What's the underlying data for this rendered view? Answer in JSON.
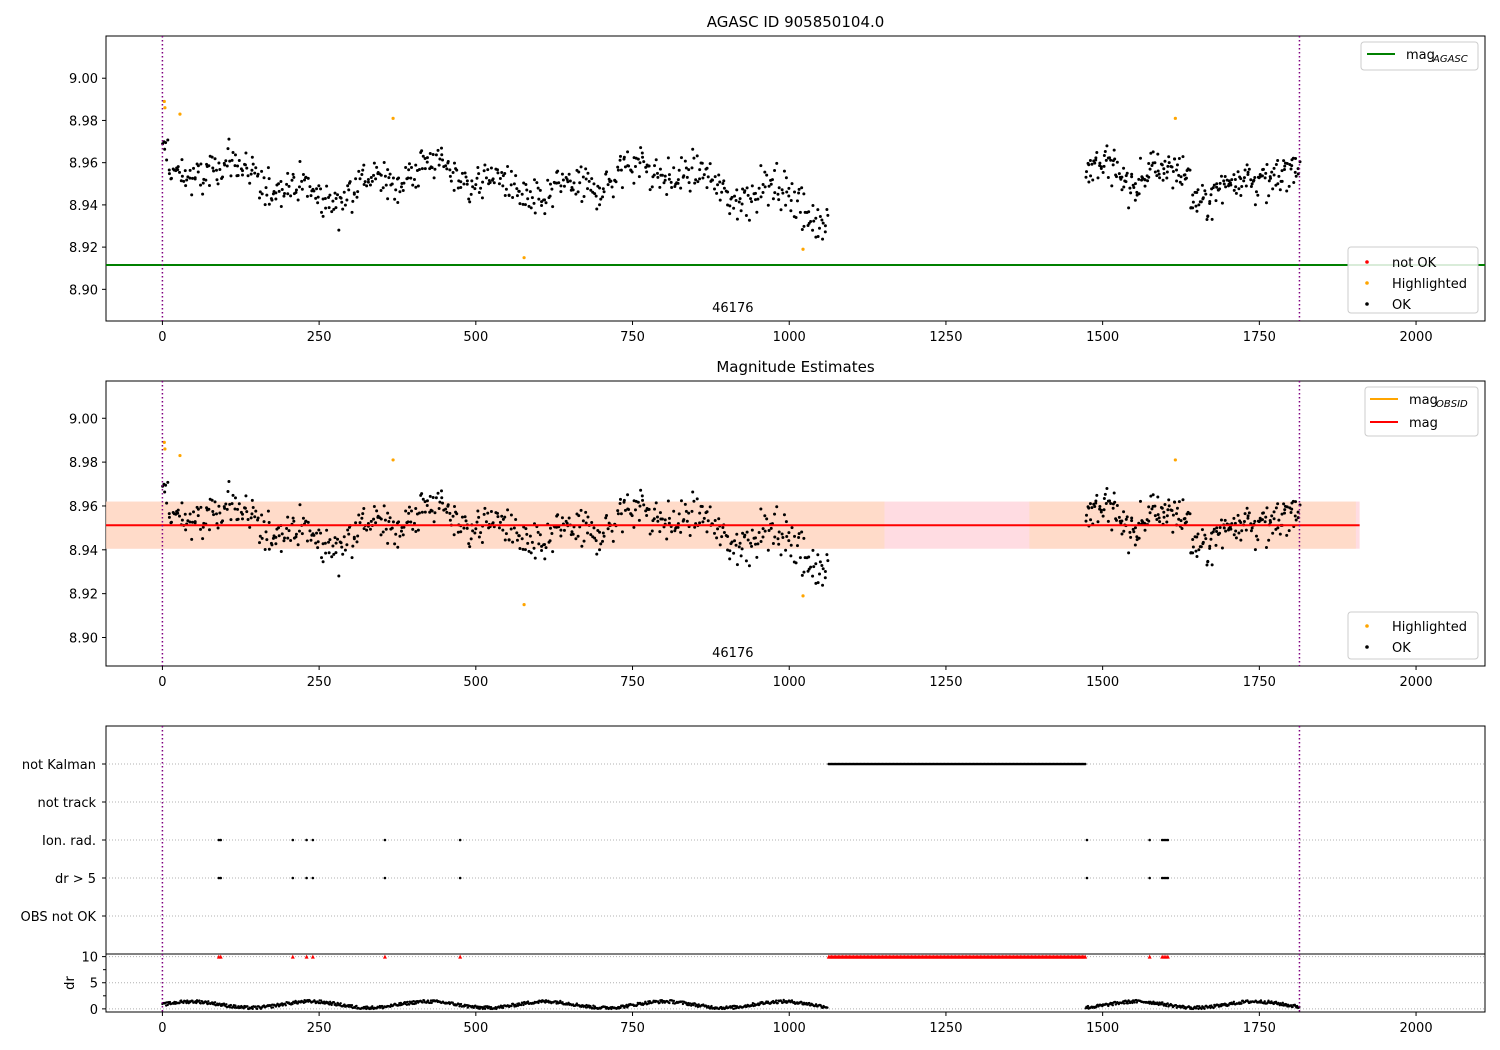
{
  "figure": {
    "background": "#ffffff"
  },
  "chart_data": [
    {
      "type": "scatter",
      "title": "AGASC ID 905850104.0",
      "xlim": [
        -90,
        2110
      ],
      "ylim": [
        8.885,
        9.02
      ],
      "xticks": [
        "0",
        "250",
        "500",
        "750",
        "1000",
        "1250",
        "1500",
        "1750",
        "2000"
      ],
      "xtick_values": [
        0,
        250,
        500,
        750,
        1000,
        1250,
        1500,
        1750,
        2000
      ],
      "yticks": [
        "8.90",
        "8.92",
        "8.94",
        "8.96",
        "8.98",
        "9.00"
      ],
      "ytick_values": [
        8.9,
        8.92,
        8.94,
        8.96,
        8.98,
        9.0
      ],
      "obsid_label": "46176",
      "obsid_label_x": 910,
      "vlines": [
        0,
        1814
      ],
      "vline_color": "#800080",
      "hlines": [
        {
          "y": 8.9115,
          "color": "#008000",
          "name": "mag",
          "sub": "AGASC"
        }
      ],
      "legend_lines": {
        "position": "upper right",
        "entries": [
          {
            "label": "mag",
            "sub": "AGASC",
            "color": "#008000"
          }
        ]
      },
      "legend_points": {
        "position": "lower right",
        "entries": [
          {
            "label": "not OK",
            "color": "#ff0000"
          },
          {
            "label": "Highlighted",
            "color": "#ffa500"
          },
          {
            "label": "OK",
            "color": "#000000"
          }
        ]
      },
      "segments": [
        {
          "from": 0,
          "to": 1062,
          "n": 620
        },
        {
          "from": 1473,
          "to": 1814,
          "n": 240
        }
      ],
      "highlighted": [
        [
          3,
          8.989
        ],
        [
          4,
          8.986
        ],
        [
          28,
          8.983
        ],
        [
          368,
          8.981
        ],
        [
          577,
          8.915
        ],
        [
          1022,
          8.919
        ],
        [
          1616,
          8.981
        ]
      ]
    },
    {
      "type": "scatter",
      "title": "Magnitude Estimates",
      "xlim": [
        -90,
        2110
      ],
      "ylim": [
        8.887,
        9.017
      ],
      "xticks": [
        "0",
        "250",
        "500",
        "750",
        "1000",
        "1250",
        "1500",
        "1750",
        "2000"
      ],
      "xtick_values": [
        0,
        250,
        500,
        750,
        1000,
        1250,
        1500,
        1750,
        2000
      ],
      "yticks": [
        "8.90",
        "8.92",
        "8.94",
        "8.96",
        "8.98",
        "9.00"
      ],
      "ytick_values": [
        8.9,
        8.92,
        8.94,
        8.96,
        8.98,
        9.0
      ],
      "obsid_label": "46176",
      "obsid_label_x": 910,
      "vlines": [
        0,
        1814
      ],
      "band": {
        "x0": -90,
        "x1": 1910,
        "y0": 8.9405,
        "y1": 8.962
      },
      "mag": 8.9512,
      "mag_obsid_segments": [
        [
          0,
          1062,
          8.9512
        ],
        [
          1473,
          1814,
          8.9512
        ]
      ],
      "legend_lines": {
        "position": "upper right",
        "entries": [
          {
            "label": "mag",
            "sub": "OBSID",
            "color": "#ffa500"
          },
          {
            "label": "mag",
            "sub": "",
            "color": "#ff0000"
          }
        ]
      },
      "legend_points": {
        "position": "lower right",
        "entries": [
          {
            "label": "Highlighted",
            "color": "#ffa500"
          },
          {
            "label": "OK",
            "color": "#000000"
          }
        ]
      }
    },
    {
      "type": "scatter",
      "title": "",
      "xlim": [
        -90,
        2110
      ],
      "flag_rows": [
        "not Kalman",
        "not track",
        "Ion. rad.",
        "dr > 5",
        "OBS not OK"
      ],
      "flags": {
        "not Kalman": [
          [
            1063,
            1473
          ]
        ],
        "not track": [],
        "Ion. rad.": [
          [
            90,
            93
          ],
          [
            208,
            208
          ],
          [
            230,
            230
          ],
          [
            240,
            240
          ],
          [
            355,
            355
          ],
          [
            475,
            475
          ],
          [
            1475,
            1475
          ],
          [
            1575,
            1575
          ],
          [
            1595,
            1605
          ]
        ],
        "dr > 5": [
          [
            90,
            93
          ],
          [
            208,
            208
          ],
          [
            230,
            230
          ],
          [
            240,
            240
          ],
          [
            355,
            355
          ],
          [
            475,
            475
          ],
          [
            1475,
            1475
          ],
          [
            1575,
            1575
          ],
          [
            1595,
            1605
          ]
        ],
        "OBS not OK": []
      }
    },
    {
      "type": "scatter",
      "title": "",
      "ylabel": "dr",
      "xlim": [
        -90,
        2110
      ],
      "ylim": [
        -0.6,
        10.5
      ],
      "yticks": [
        "0",
        "5",
        "10"
      ],
      "ytick_values": [
        0,
        5,
        10
      ],
      "xticks": [
        "0",
        "250",
        "500",
        "750",
        "1000",
        "1250",
        "1500",
        "1750",
        "2000"
      ],
      "xtick_values": [
        0,
        250,
        500,
        750,
        1000,
        1250,
        1500,
        1750,
        2000
      ],
      "clipped_markers": [
        [
          90,
          93
        ],
        [
          208,
          208
        ],
        [
          230,
          230
        ],
        [
          240,
          240
        ],
        [
          355,
          355
        ],
        [
          475,
          475
        ],
        [
          1063,
          1473
        ],
        [
          1575,
          1575
        ],
        [
          1595,
          1605
        ]
      ],
      "clipped_color": "#ff0000"
    }
  ]
}
